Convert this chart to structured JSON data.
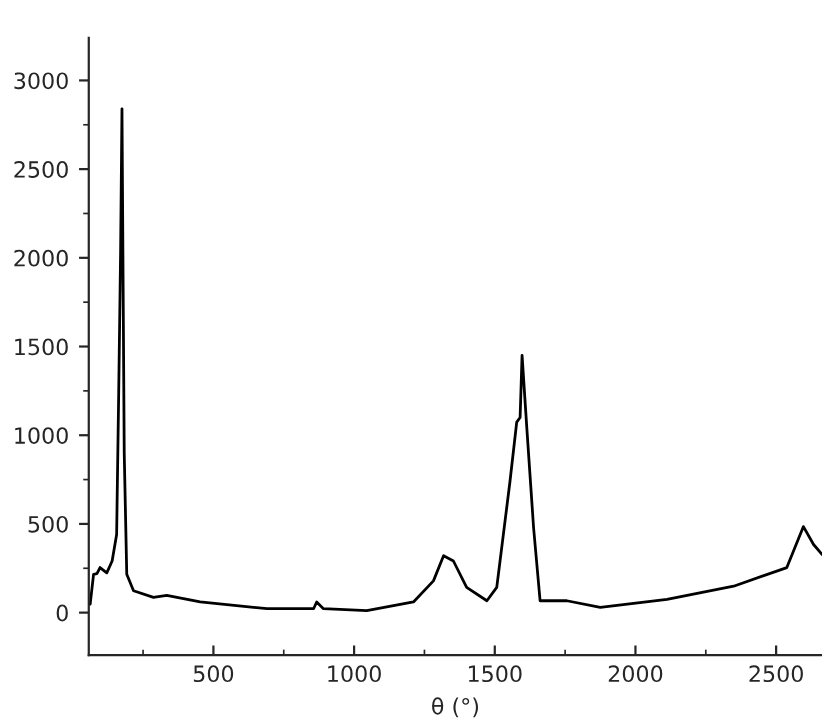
{
  "chart_data": {
    "type": "line",
    "xlabel": "θ (°)",
    "series": [
      {
        "color": "#000000",
        "x": [
          62,
          74,
          86,
          97,
          121,
          140,
          156,
          163,
          170,
          175,
          178,
          183,
          192,
          216,
          287,
          334,
          453,
          690,
          856,
          867,
          891,
          1045,
          1211,
          1282,
          1318,
          1353,
          1400,
          1472,
          1507,
          1554,
          1578,
          1590,
          1597,
          1614,
          1638,
          1661,
          1756,
          1875,
          2112,
          2349,
          2538,
          2597,
          2633,
          2663
        ],
        "values": [
          48,
          216,
          220,
          254,
          224,
          291,
          440,
          1200,
          2020,
          2840,
          2100,
          900,
          216,
          123,
          86,
          97,
          60,
          22,
          22,
          60,
          22,
          11,
          60,
          179,
          321,
          291,
          142,
          67,
          142,
          739,
          1074,
          1100,
          1450,
          1037,
          477,
          67,
          67,
          30,
          75,
          149,
          254,
          485,
          384,
          328
        ]
      }
    ],
    "xlim": [
      57,
      2663
    ],
    "ylim": [
      -240,
      3240
    ],
    "xticks": [
      500,
      1000,
      1500,
      2000,
      2500
    ],
    "yticks": [
      0,
      500,
      1000,
      1500,
      2000,
      2500,
      3000
    ],
    "grid": false,
    "legend": false,
    "marker": "none",
    "line_style": "solid"
  }
}
